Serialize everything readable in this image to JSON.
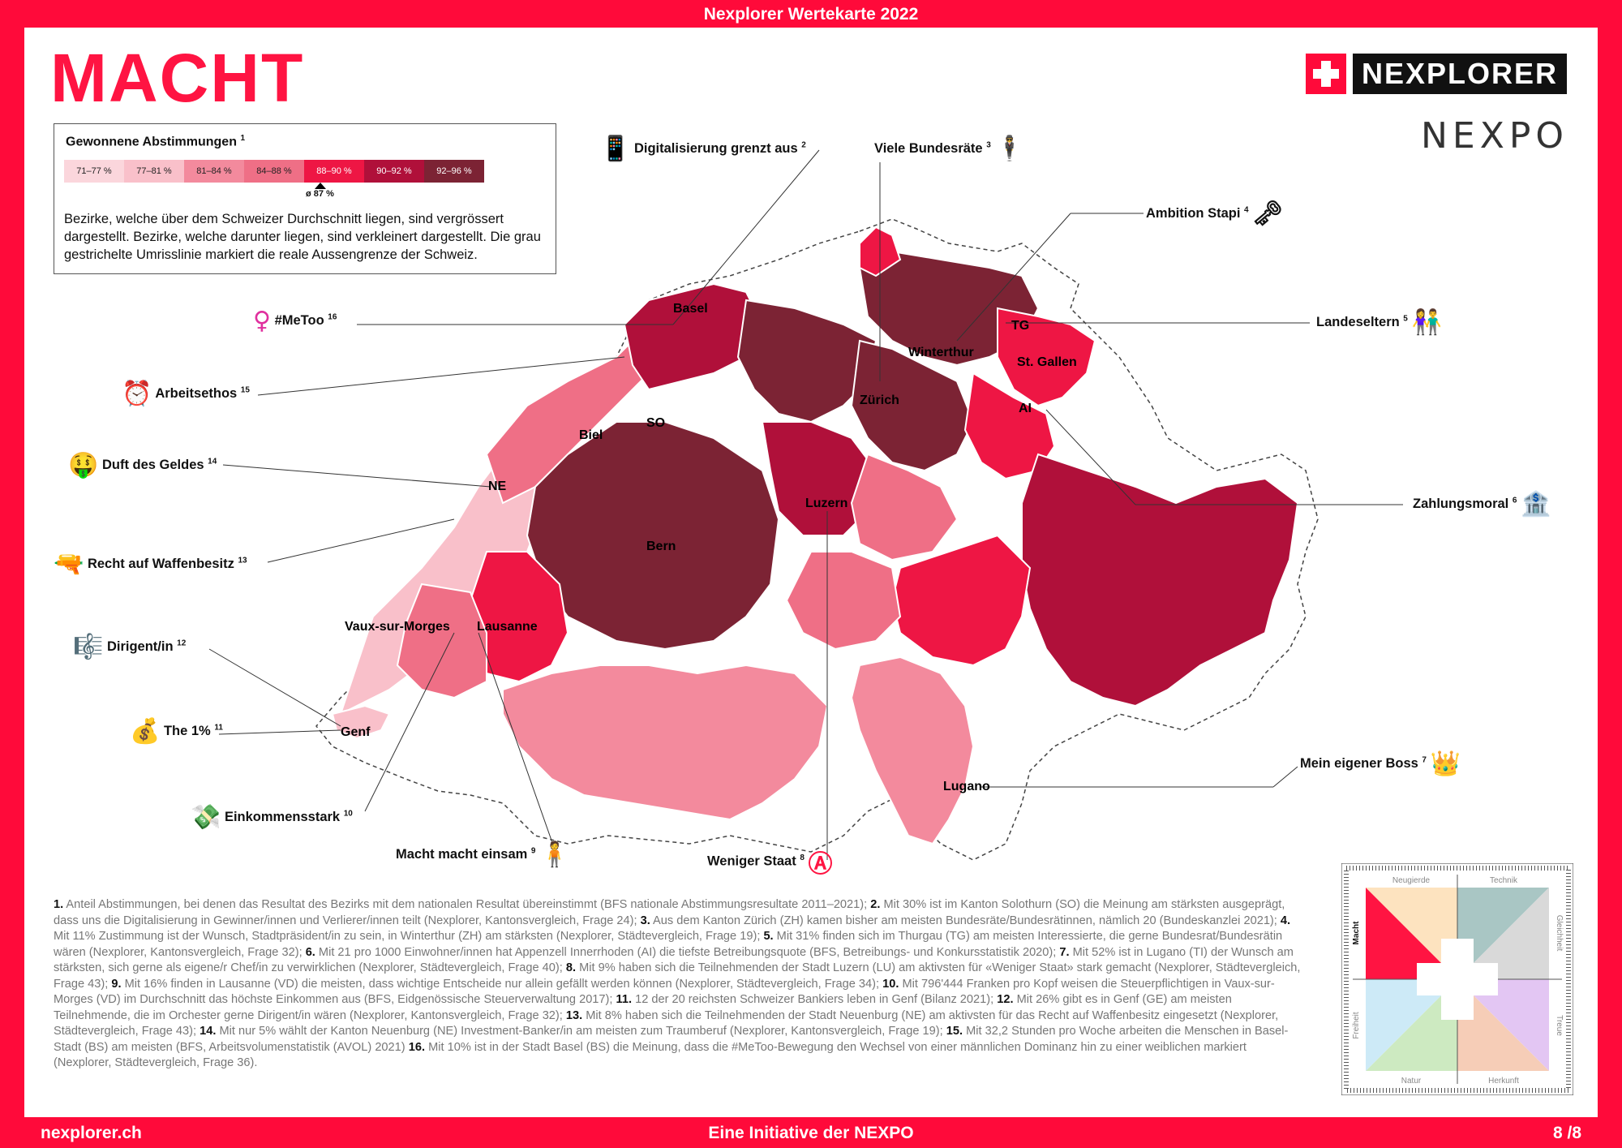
{
  "header": {
    "title": "Nexplorer Wertekarte 2022"
  },
  "page_title": "MACHT",
  "brand": {
    "name": "NEXPLORER",
    "partner": "NEXPO"
  },
  "legend": {
    "title": "Gewonnene Abstimmungen",
    "title_ref": "1",
    "classes": [
      {
        "label": "71–77 %",
        "color": "#fbd6dc"
      },
      {
        "label": "77–81 %",
        "color": "#f9c0ca"
      },
      {
        "label": "81–84 %",
        "color": "#f38a9d"
      },
      {
        "label": "84–88 %",
        "color": "#ef6f86"
      },
      {
        "label": "88–90 %",
        "color": "#ee1644"
      },
      {
        "label": "90–92 %",
        "color": "#b0103a"
      },
      {
        "label": "92–96 %",
        "color": "#7c2334"
      }
    ],
    "average": "ø 87 %",
    "description": "Bezirke, welche über dem Schweizer Durchschnitt liegen, sind vergrössert dargestellt. Bezirke, welche darunter liegen, sind verkleinert dargestellt. Die grau gestrichelte Umrisslinie markiert die reale Aussengrenze der Schweiz."
  },
  "cities": {
    "basel": "Basel",
    "winterthur": "Winterthur",
    "tg": "TG",
    "st_gallen": "St. Gallen",
    "zurich": "Zürich",
    "ai": "AI",
    "so": "SO",
    "biel": "Biel",
    "ne": "NE",
    "luzern": "Luzern",
    "bern": "Bern",
    "vaux": "Vaux-sur-Morges",
    "lausanne": "Lausanne",
    "genf": "Genf",
    "lugano": "Lugano"
  },
  "callouts": {
    "digital": {
      "label": "Digitalisierung grenzt aus",
      "ref": "2",
      "icon": "mobile-phone-icon",
      "glyph": "📱"
    },
    "bundesraete": {
      "label": "Viele Bundesräte",
      "ref": "3",
      "icon": "businessman-icon",
      "glyph": "🕴"
    },
    "stapi": {
      "label": "Ambition Stapi",
      "ref": "4",
      "icon": "old-key-icon",
      "glyph": "🗝"
    },
    "landeseltern": {
      "label": "Landeseltern",
      "ref": "5",
      "icon": "couple-icon",
      "glyph": "👫"
    },
    "zahlungsmoral": {
      "label": "Zahlungsmoral",
      "ref": "6",
      "icon": "bank-icon",
      "glyph": "🏦"
    },
    "boss": {
      "label": "Mein eigener Boss",
      "ref": "7",
      "icon": "crown-icon",
      "glyph": "👑"
    },
    "staat": {
      "label": "Weniger Staat",
      "ref": "8",
      "icon": "anarchy-icon",
      "glyph": "Ⓐ"
    },
    "einsam": {
      "label": "Macht macht einsam",
      "ref": "9",
      "icon": "person-standing-icon",
      "glyph": "🧍"
    },
    "einkommen": {
      "label": "Einkommensstark",
      "ref": "10",
      "icon": "money-with-wings-icon",
      "glyph": "💸"
    },
    "prozent": {
      "label": "The 1%",
      "ref": "11",
      "icon": "money-bag-icon",
      "glyph": "💰"
    },
    "dirigent": {
      "label": "Dirigent/in",
      "ref": "12",
      "icon": "musical-score-icon",
      "glyph": "🎼"
    },
    "waffen": {
      "label": "Recht auf Waffenbesitz",
      "ref": "13",
      "icon": "water-pistol-icon",
      "glyph": "🔫"
    },
    "geld": {
      "label": "Duft des Geldes",
      "ref": "14",
      "icon": "money-mouth-face-icon",
      "glyph": "🤑"
    },
    "arbeit": {
      "label": "Arbeitsethos",
      "ref": "15",
      "icon": "alarm-clock-icon",
      "glyph": "⏰"
    },
    "metoo": {
      "label": "#MeToo",
      "ref": "16",
      "icon": "female-sign-icon",
      "glyph": "♀"
    }
  },
  "footnotes": [
    {
      "n": "1.",
      "text": "Anteil Abstimmungen, bei denen das Resultat des Bezirks mit dem nationalen Resultat übereinstimmt (BFS nationale Abstimmungsresultate 2011–2021);"
    },
    {
      "n": "2.",
      "text": "Mit 30% ist im Kanton Solothurn (SO) die Meinung am stärksten ausgeprägt, dass uns die Digitalisierung in Gewinner/innen und Verlierer/innen teilt (Nexplorer, Kantonsvergleich, Frage 24);"
    },
    {
      "n": "3.",
      "text": "Aus dem Kanton Zürich (ZH) kamen bisher am meisten Bundesräte/Bundesrätinnen, nämlich 20 (Bundeskanzlei 2021);"
    },
    {
      "n": "4.",
      "text": "Mit 11% Zustimmung ist der Wunsch, Stadtpräsident/in zu sein, in Winterthur (ZH) am stärksten (Nexplorer, Städtevergleich, Frage 19);"
    },
    {
      "n": "5.",
      "text": "Mit 31% finden sich im Thurgau (TG) am meisten Interessierte, die gerne Bundesrat/Bundesrätin wären (Nexplorer, Kantonsvergleich, Frage 32);"
    },
    {
      "n": "6.",
      "text": "Mit 21 pro 1000 Einwohner/innen hat Appenzell Innerrhoden (AI) die tiefste Betreibungsquote (BFS, Betreibungs- und Konkursstatistik 2020);"
    },
    {
      "n": "7.",
      "text": "Mit 52% ist in Lugano (TI) der Wunsch am stärksten, sich gerne als eigene/r Chef/in zu verwirklichen (Nexplorer, Städtevergleich, Frage 40);"
    },
    {
      "n": "8.",
      "text": "Mit 9% haben sich die Teilnehmenden der Stadt Luzern (LU) am aktivsten für «Weniger Staat» stark gemacht (Nexplorer, Städtevergleich, Frage 43);"
    },
    {
      "n": "9.",
      "text": "Mit 16% finden in Lausanne (VD) die meisten, dass wichtige Entscheide nur allein gefällt werden können (Nexplorer, Städtevergleich, Frage 34);"
    },
    {
      "n": "10.",
      "text": "Mit 796'444 Franken pro Kopf weisen die Steuerpflichtigen in Vaux-sur-Morges (VD) im Durchschnitt das höchste Einkommen aus (BFS, Eidgenössische Steuerverwaltung 2017);"
    },
    {
      "n": "11.",
      "text": "12 der 20 reichsten Schweizer Bankiers leben in Genf (Bilanz 2021);"
    },
    {
      "n": "12.",
      "text": "Mit 26% gibt es in Genf (GE) am meisten Teilnehmende, die im Orchester gerne Dirigent/in wären (Nexplorer, Kantonsvergleich, Frage 32);"
    },
    {
      "n": "13.",
      "text": "Mit 8% haben sich die Teilnehmenden der Stadt Neuenburg (NE) am aktivsten für das Recht auf Waffenbesitz eingesetzt (Nexplorer, Städtevergleich, Frage 43);"
    },
    {
      "n": "14.",
      "text": "Mit nur 5% wählt der Kanton Neuenburg (NE) Investment-Banker/in am meisten zum Traumberuf (Nexplorer, Kantonsvergleich, Frage 19);"
    },
    {
      "n": "15.",
      "text": "Mit 32,2 Stunden pro Woche arbeiten die Menschen in Basel-Stadt (BS) am meisten (BFS, Arbeitsvolumenstatistik (AVOL) 2021)"
    },
    {
      "n": "16.",
      "text": "Mit 10% ist in der Stadt Basel (BS) die Meinung, dass die #MeToo-Bewegung den Wechsel von einer männlichen Dominanz hin zu einer weiblichen markiert (Nexplorer, Städtevergleich, Frage 36)."
    }
  ],
  "compass": {
    "labels": {
      "top_left": "Neugierde",
      "top_right": "Technik",
      "right_top": "Gleichheit",
      "right_bottom": "Treue",
      "bottom_left": "Natur",
      "bottom_right": "Herkunft",
      "left_top": "Macht",
      "left_bottom": "Freiheit"
    },
    "colors": {
      "macht": "#ff1442",
      "neugierde": "#fde3bf",
      "technik": "#a9c6c4",
      "gleichheit": "#d9d9d9",
      "treue": "#e3c6f3",
      "herkunft": "#f6cdb7",
      "natur": "#cdeac1",
      "freiheit": "#cdeaf7"
    }
  },
  "footer": {
    "left": "nexplorer.ch",
    "center": "Eine Initiative der NEXPO",
    "right": "8 /8"
  }
}
